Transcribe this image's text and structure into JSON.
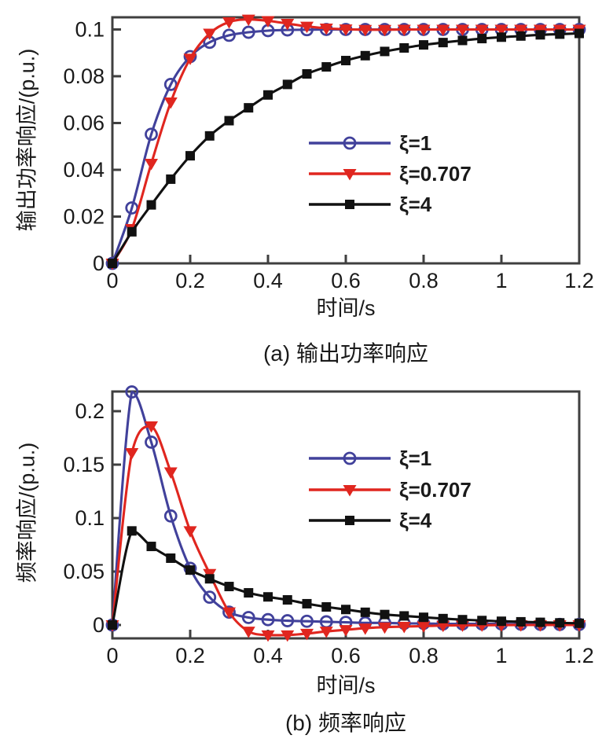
{
  "figure": {
    "background": "#ffffff",
    "axis_color": "#3f3f3f",
    "text_color": "#1a1a1a"
  },
  "chart_data": [
    {
      "id": "a",
      "type": "line",
      "caption": "(a) 输出功率响应",
      "xlabel": "时间/s",
      "ylabel": "输出功率响应/(p.u.)",
      "xlim": [
        0,
        1.2
      ],
      "ylim": [
        0,
        0.1052
      ],
      "grid": false,
      "legend_position": "inside-center-right",
      "xticks": {
        "values": [
          0,
          0.2,
          0.4,
          0.6,
          0.8,
          1,
          1.2
        ],
        "labels": [
          "0",
          "0.2",
          "0.4",
          "0.6",
          "0.8",
          "1",
          "1.2"
        ]
      },
      "yticks": {
        "values": [
          0,
          0.02,
          0.04,
          0.06,
          0.08,
          0.1
        ],
        "labels": [
          "0",
          "0.02",
          "0.04",
          "0.06",
          "0.08",
          "0.1"
        ]
      },
      "x": [
        0,
        0.05,
        0.1,
        0.15,
        0.2,
        0.25,
        0.3,
        0.35,
        0.4,
        0.45,
        0.5,
        0.55,
        0.6,
        0.65,
        0.7,
        0.75,
        0.8,
        0.85,
        0.9,
        0.95,
        1,
        1.05,
        1.1,
        1.15,
        1.2
      ],
      "series": [
        {
          "name": "ξ=1",
          "color": "#41419b",
          "marker": "circle",
          "values": [
            0,
            0.0237,
            0.0552,
            0.0765,
            0.0884,
            0.0945,
            0.0975,
            0.0988,
            0.0995,
            0.0998,
            0.0999,
            0.1,
            0.1,
            0.1,
            0.1,
            0.1,
            0.1,
            0.1,
            0.1,
            0.1,
            0.1,
            0.1,
            0.1,
            0.1,
            0.1
          ]
        },
        {
          "name": "ξ=0.707",
          "color": "#e0261f",
          "marker": "triangle-down",
          "values": [
            0,
            0.0148,
            0.0427,
            0.0689,
            0.0876,
            0.0983,
            0.1032,
            0.1043,
            0.1037,
            0.1025,
            0.1013,
            0.1005,
            0.1001,
            0.0999,
            0.0999,
            0.1,
            0.1,
            0.1,
            0.1,
            0.1,
            0.1,
            0.1,
            0.1,
            0.1,
            0.1
          ]
        },
        {
          "name": "ξ=4",
          "color": "#111111",
          "marker": "square",
          "values": [
            0,
            0.0135,
            0.025,
            0.036,
            0.046,
            0.0545,
            0.061,
            0.0665,
            0.072,
            0.0765,
            0.081,
            0.084,
            0.0867,
            0.0888,
            0.0906,
            0.0921,
            0.0934,
            0.0944,
            0.0953,
            0.0961,
            0.0967,
            0.0972,
            0.0977,
            0.098,
            0.0983
          ]
        }
      ]
    },
    {
      "id": "b",
      "type": "line",
      "caption": "(b) 频率响应",
      "xlabel": "时间/s",
      "ylabel": "频率响应/(p.u.)",
      "xlim": [
        0,
        1.2
      ],
      "ylim": [
        -0.0125,
        0.2184
      ],
      "grid": false,
      "legend_position": "inside-center-right",
      "xticks": {
        "values": [
          0,
          0.2,
          0.4,
          0.6,
          0.8,
          1,
          1.2
        ],
        "labels": [
          "0",
          "0.2",
          "0.4",
          "0.6",
          "0.8",
          "1",
          "1.2"
        ]
      },
      "yticks": {
        "values": [
          0,
          0.05,
          0.1,
          0.15,
          0.2
        ],
        "labels": [
          "0",
          "0.05",
          "0.1",
          "0.15",
          "0.2"
        ]
      },
      "x": [
        0,
        0.05,
        0.1,
        0.15,
        0.2,
        0.25,
        0.3,
        0.35,
        0.4,
        0.45,
        0.5,
        0.55,
        0.6,
        0.65,
        0.7,
        0.75,
        0.8,
        0.85,
        0.9,
        0.95,
        1,
        1.05,
        1.1,
        1.15,
        1.2
      ],
      "series": [
        {
          "name": "ξ=1",
          "color": "#41419b",
          "marker": "circle",
          "values": [
            0,
            0.218,
            0.171,
            0.102,
            0.053,
            0.026,
            0.012,
            0.007,
            0.005,
            0.004,
            0.0035,
            0.003,
            0.0025,
            0.002,
            0.002,
            0.0015,
            0.0015,
            0.001,
            0.001,
            0.001,
            0.001,
            0.0008,
            0.0006,
            0.0005,
            0.0005
          ]
        },
        {
          "name": "ξ=0.707",
          "color": "#e0261f",
          "marker": "triangle-down",
          "values": [
            0,
            0.161,
            0.186,
            0.143,
            0.088,
            0.048,
            0.012,
            -0.006,
            -0.0095,
            -0.0095,
            -0.008,
            -0.006,
            -0.0045,
            -0.003,
            -0.002,
            -0.0015,
            -0.001,
            -0.0005,
            -0.0003,
            -0.0002,
            -0.0001,
            0,
            0,
            0,
            0
          ]
        },
        {
          "name": "ξ=4",
          "color": "#111111",
          "marker": "square",
          "values": [
            0,
            0.088,
            0.0735,
            0.0625,
            0.0514,
            0.0432,
            0.036,
            0.0301,
            0.0263,
            0.0235,
            0.0199,
            0.0169,
            0.0145,
            0.0119,
            0.0098,
            0.0085,
            0.0072,
            0.006,
            0.005,
            0.0042,
            0.0035,
            0.003,
            0.0025,
            0.002,
            0.0016
          ]
        }
      ]
    }
  ]
}
